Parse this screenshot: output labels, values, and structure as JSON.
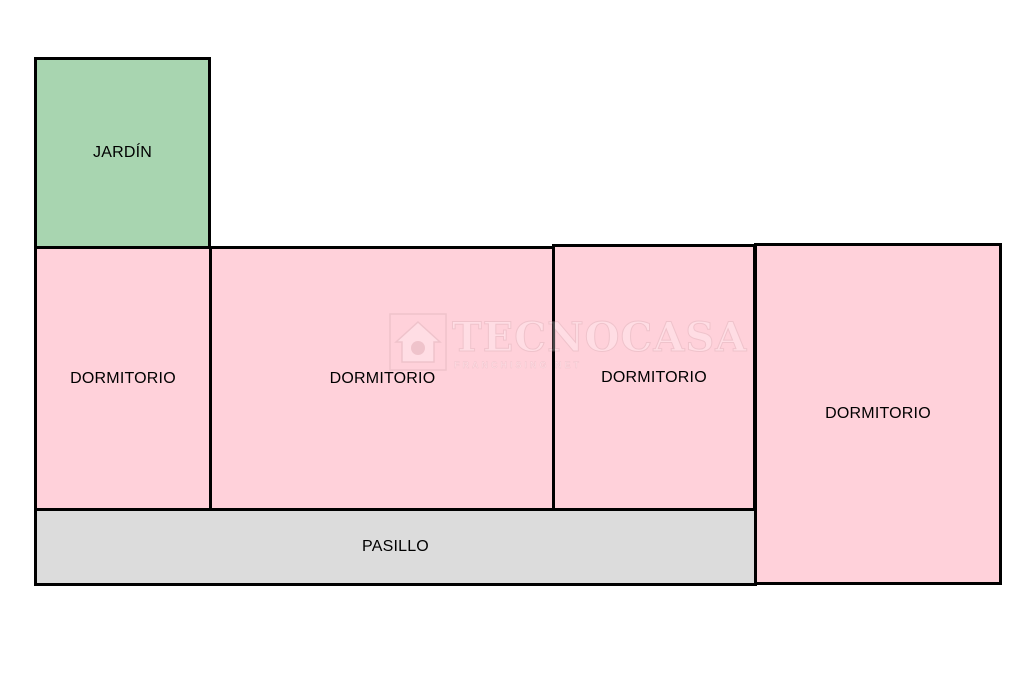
{
  "rooms": {
    "garden": {
      "label": "JARDÍN"
    },
    "bedroom_1": {
      "label": "DORMITORIO"
    },
    "bedroom_2": {
      "label": "DORMITORIO"
    },
    "bedroom_3": {
      "label": "DORMITORIO"
    },
    "bedroom_4": {
      "label": "DORMITORIO"
    },
    "hallway": {
      "label": "PASILLO"
    }
  },
  "watermark": {
    "brand": "TECNOCASA",
    "tagline": "FRANCHISING NET",
    "icon": "house-icon"
  },
  "colors": {
    "garden": "#a8d5b0",
    "bedroom": "#ffd1da",
    "hallway": "#dcdcdc",
    "walls": "#000000"
  }
}
